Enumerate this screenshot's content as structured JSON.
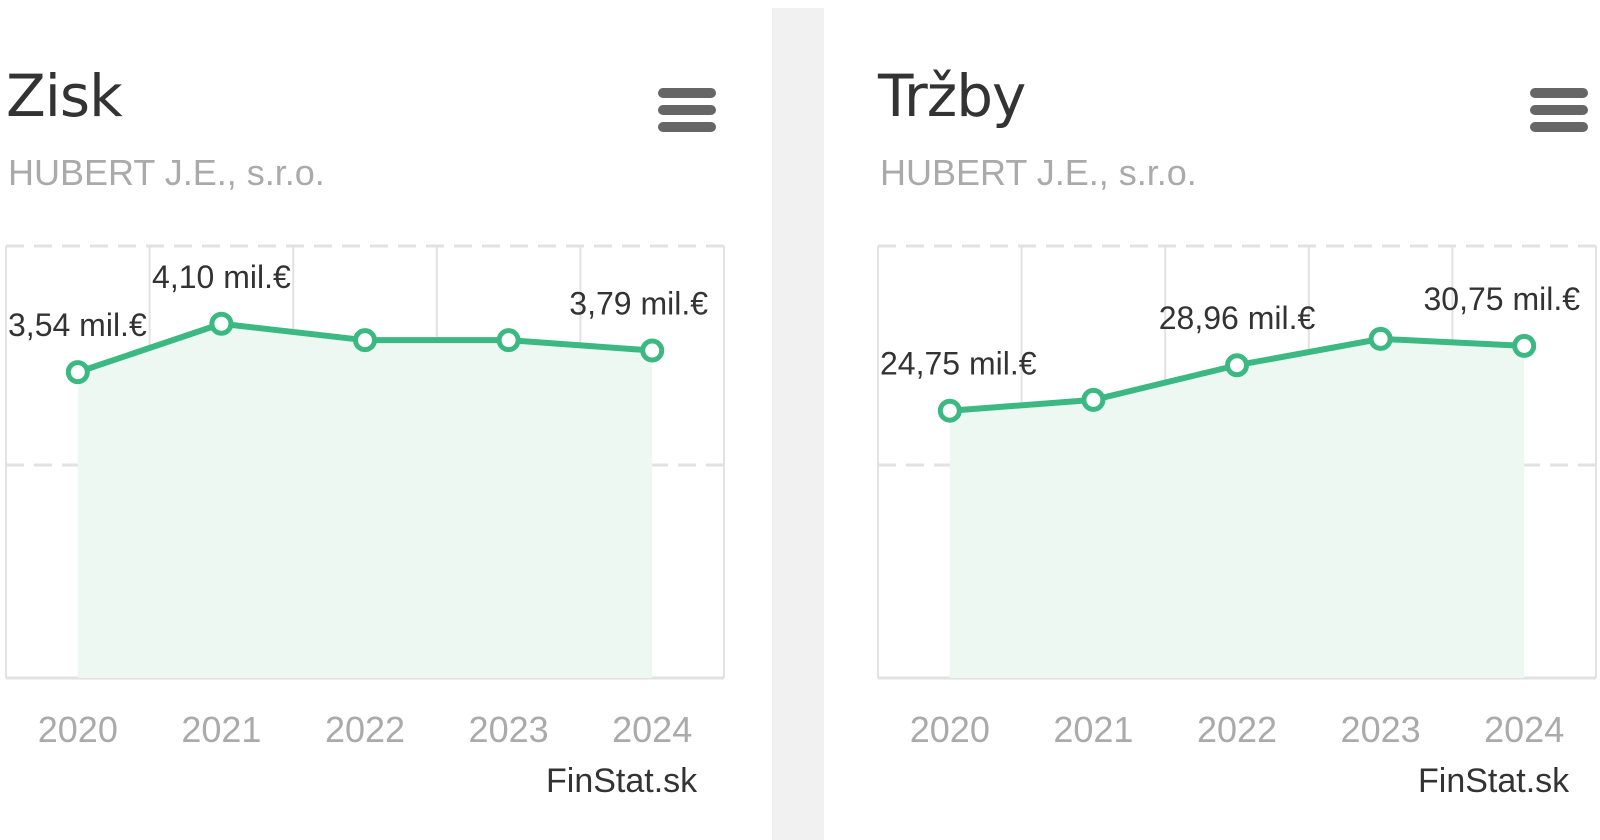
{
  "charts": [
    {
      "menu_icon": "hamburger-menu-icon",
      "credit": "FinStat.sk",
      "chart_data": {
        "type": "line",
        "title": "Zisk",
        "subtitle": "HUBERT J.E., s.r.o.",
        "categories": [
          "2020",
          "2021",
          "2022",
          "2023",
          "2024"
        ],
        "values": [
          3.54,
          4.1,
          3.91,
          3.91,
          3.79
        ],
        "data_labels": [
          "3,54 mil.€",
          "4,10 mil.€",
          "",
          "",
          "3,79 mil.€"
        ],
        "ylim": [
          0,
          5
        ],
        "grid": true,
        "legend": "none",
        "colors": {
          "line": "#3cb882",
          "area": "#eef8f3",
          "grid": "#e2e2e2"
        }
      }
    },
    {
      "menu_icon": "hamburger-menu-icon",
      "credit": "FinStat.sk",
      "chart_data": {
        "type": "line",
        "title": "Tržby",
        "subtitle": "HUBERT J.E., s.r.o.",
        "categories": [
          "2020",
          "2021",
          "2022",
          "2023",
          "2024"
        ],
        "values": [
          24.75,
          25.75,
          28.96,
          31.4,
          30.75
        ],
        "data_labels": [
          "24,75 mil.€",
          "",
          "28,96 mil.€",
          "",
          "30,75 mil.€"
        ],
        "ylim": [
          0,
          40
        ],
        "grid": true,
        "legend": "none",
        "colors": {
          "line": "#3cb882",
          "area": "#eef8f3",
          "grid": "#e2e2e2"
        }
      }
    }
  ]
}
